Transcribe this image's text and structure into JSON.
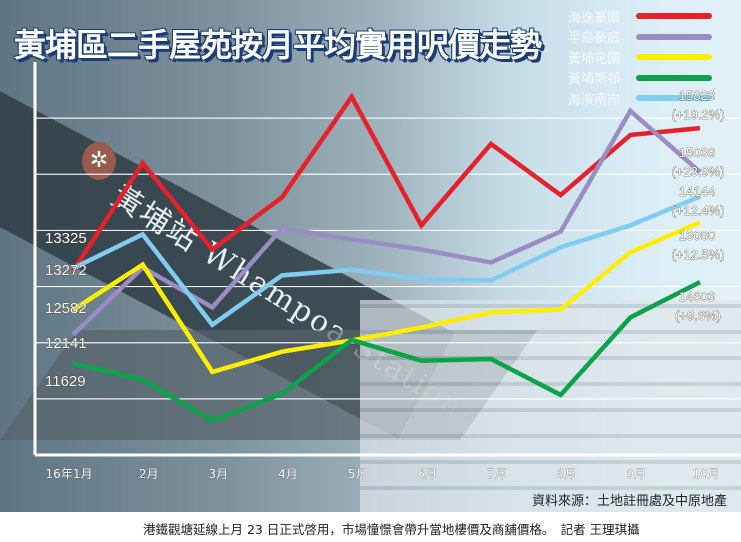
{
  "chart_data": {
    "type": "line",
    "title": "黃埔區二手屋苑按月平均實用呎價走勢",
    "categories": [
      "16年1月",
      "2月",
      "3月",
      "4月",
      "5月",
      "6月",
      "7月",
      "8月",
      "9月",
      "10月"
    ],
    "ylim": [
      10000,
      17000
    ],
    "grid": true,
    "legend_placement": "top-right",
    "series": [
      {
        "name": "海逸豪園",
        "color": "#e8202a",
        "values": [
          13272,
          15200,
          13660,
          14590,
          16380,
          14090,
          15540,
          14630,
          15700,
          15823
        ],
        "start_label": "13272",
        "end_label": "15823",
        "end_change": "(+19.2%)"
      },
      {
        "name": "半島豪庭",
        "color": "#9a8cc4",
        "values": [
          12141,
          13340,
          12630,
          14040,
          13840,
          13660,
          13430,
          13980,
          16130,
          15039
        ],
        "start_label": "12141",
        "end_label": "15039",
        "end_change": "(+23.9%)"
      },
      {
        "name": "黃埔花園",
        "color": "#ffee00",
        "values": [
          12582,
          13390,
          11480,
          11840,
          12040,
          12270,
          12540,
          12590,
          13610,
          14144
        ],
        "start_label": "12582",
        "end_label": "14144",
        "end_change": "(+12.4%)"
      },
      {
        "name": "黃埔新邨",
        "color": "#0aa34a",
        "values": [
          11629,
          11340,
          10610,
          11090,
          12050,
          11680,
          11710,
          11070,
          12450,
          13080
        ],
        "start_label": "11629",
        "end_label": "13080",
        "end_change": "(+12.5%)"
      },
      {
        "name": "海濱南岸",
        "color": "#80cdf0",
        "values": [
          13325,
          13930,
          12320,
          13200,
          13300,
          13130,
          13110,
          13700,
          14090,
          14603
        ],
        "start_label": "13325",
        "end_label": "14603",
        "end_change": "(+9.6%)"
      }
    ]
  },
  "photo_text": {
    "station_sign": "黃埔站 Whampoa Station"
  },
  "source": "資料來源：土地註冊處及中原地產",
  "caption": "港鐵觀塘延線上月 23 日正式啓用，市場憧憬會帶升當地樓價及商舖價格。　記者 王理琪攝"
}
